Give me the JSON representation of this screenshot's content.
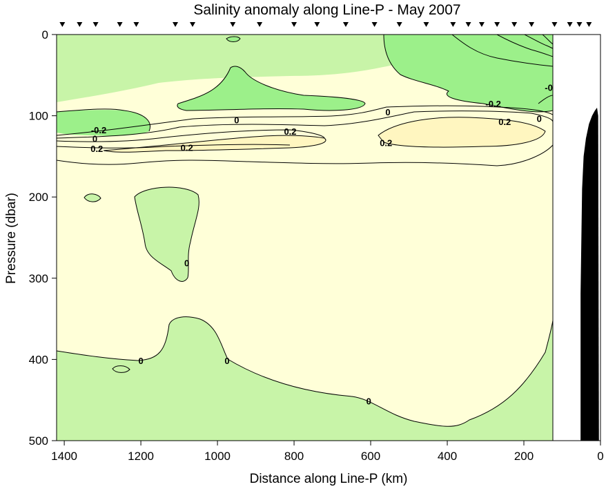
{
  "chart_data": {
    "type": "contour",
    "title": "Salinity anomaly along Line-P - May 2007",
    "xlabel": "Distance along Line-P (km)",
    "ylabel": "Pressure (dbar)",
    "xlim": [
      1420,
      0
    ],
    "ylim": [
      0,
      500
    ],
    "x_ticks": [
      1400,
      1200,
      1000,
      800,
      600,
      400,
      200,
      0
    ],
    "y_ticks": [
      0,
      100,
      200,
      300,
      400,
      500
    ],
    "data_limit_km": 125,
    "colors": {
      "below_neg_0_2": "#9cf08a",
      "neg_0_2_to_0": "#c8f4a8",
      "zero_to_0_2": "#ffffd8",
      "above_0_2": "#fff6c0",
      "bathymetry": "#000000"
    },
    "stations_km": [
      1405,
      1360,
      1318,
      1255,
      1212,
      1110,
      1065,
      960,
      890,
      800,
      740,
      665,
      590,
      525,
      455,
      385,
      345,
      310,
      270,
      225,
      180,
      120,
      80,
      55,
      30
    ],
    "contour_labels": [
      {
        "text": "0",
        "x": 950,
        "y": 106
      },
      {
        "text": "0.2",
        "x": 810,
        "y": 120
      },
      {
        "text": "0.2",
        "x": 1080,
        "y": 140
      },
      {
        "text": "0",
        "x": 555,
        "y": 96
      },
      {
        "text": "0.2",
        "x": 560,
        "y": 134
      },
      {
        "text": "0.2",
        "x": 250,
        "y": 108
      },
      {
        "text": "0",
        "x": 160,
        "y": 104
      },
      {
        "text": "-0.2",
        "x": 280,
        "y": 86
      },
      {
        "text": "-0",
        "x": 135,
        "y": 66
      },
      {
        "text": "-0.2",
        "x": 1310,
        "y": 118
      },
      {
        "text": "0",
        "x": 1320,
        "y": 129
      },
      {
        "text": "0.2",
        "x": 1315,
        "y": 141
      },
      {
        "text": "0",
        "x": 1080,
        "y": 282
      },
      {
        "text": "0",
        "x": 1200,
        "y": 402
      },
      {
        "text": "0",
        "x": 975,
        "y": 402
      },
      {
        "text": "0",
        "x": 605,
        "y": 452
      }
    ],
    "bathymetry": [
      {
        "x": 52,
        "y": 500
      },
      {
        "x": 52,
        "y": 320
      },
      {
        "x": 48,
        "y": 190
      },
      {
        "x": 44,
        "y": 150
      },
      {
        "x": 38,
        "y": 128
      },
      {
        "x": 30,
        "y": 110
      },
      {
        "x": 22,
        "y": 100
      },
      {
        "x": 15,
        "y": 94
      },
      {
        "x": 9,
        "y": 90
      },
      {
        "x": 6,
        "y": 100
      },
      {
        "x": 4,
        "y": 500
      }
    ]
  }
}
